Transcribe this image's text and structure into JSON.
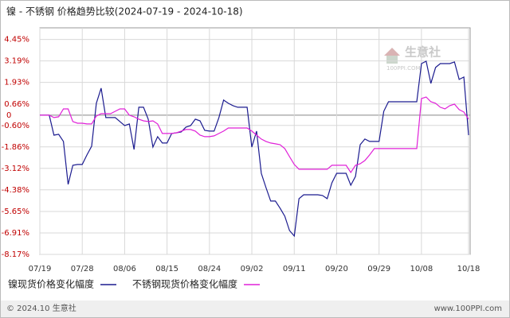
{
  "chart_data": {
    "type": "line",
    "title": "镍 - 不锈钢  价格趋势比较(2024-07-19 - 2024-10-18)",
    "categories": [
      "07/19",
      null,
      null,
      null,
      null,
      null,
      null,
      null,
      null,
      "07/28",
      null,
      null,
      null,
      null,
      null,
      null,
      null,
      null,
      "08/06",
      null,
      null,
      null,
      null,
      null,
      null,
      null,
      null,
      "08/15",
      null,
      null,
      null,
      null,
      null,
      null,
      null,
      null,
      "08/24",
      null,
      null,
      null,
      null,
      null,
      null,
      null,
      null,
      "09/02",
      null,
      null,
      null,
      null,
      null,
      null,
      null,
      null,
      "09/11",
      null,
      null,
      null,
      null,
      null,
      null,
      null,
      null,
      "09/20",
      null,
      null,
      null,
      null,
      null,
      null,
      null,
      null,
      "09/29",
      null,
      null,
      null,
      null,
      null,
      null,
      null,
      null,
      "10/08",
      null,
      null,
      null,
      null,
      null,
      null,
      null,
      null,
      null,
      "10/18"
    ],
    "series": [
      {
        "name": "镍现货价格变化幅度",
        "color": "#1b1b8f",
        "values": [
          0,
          0,
          0,
          -1.17,
          -1.12,
          -1.54,
          -4.06,
          -2.94,
          -2.89,
          -2.89,
          -2.33,
          -1.82,
          0.7,
          1.59,
          -0.14,
          -0.14,
          -0.14,
          -0.37,
          -0.61,
          -0.51,
          -2.01,
          0.47,
          0.47,
          -0.23,
          -1.87,
          -1.26,
          -1.63,
          -1.63,
          -1.07,
          -1.03,
          -0.98,
          -0.7,
          -0.61,
          -0.23,
          -0.33,
          -0.89,
          -0.93,
          -0.93,
          -0.14,
          0.89,
          0.7,
          0.56,
          0.47,
          0.47,
          0.47,
          -1.87,
          -0.93,
          -3.41,
          -4.25,
          -5.04,
          -5.04,
          -5.46,
          -5.93,
          -6.77,
          -7.09,
          -4.9,
          -4.67,
          -4.67,
          -4.67,
          -4.67,
          -4.71,
          -4.9,
          -3.97,
          -3.41,
          -3.41,
          -3.41,
          -4.11,
          -3.59,
          -1.73,
          -1.4,
          -1.54,
          -1.54,
          -1.54,
          0.23,
          0.79,
          0.79,
          0.79,
          0.79,
          0.79,
          0.79,
          0.79,
          3.03,
          3.17,
          1.87,
          2.8,
          3.03,
          3.03,
          3.03,
          3.13,
          2.1,
          2.24,
          -1.17
        ]
      },
      {
        "name": "不锈钢现货价格变化幅度",
        "color": "#e020d8",
        "values": [
          0,
          0,
          0,
          -0.14,
          -0.09,
          0.37,
          0.37,
          -0.37,
          -0.47,
          -0.47,
          -0.51,
          -0.51,
          -0.05,
          0.09,
          0.09,
          0.09,
          0.23,
          0.37,
          0.37,
          0,
          -0.09,
          -0.23,
          -0.33,
          -0.37,
          -0.33,
          -0.51,
          -1.07,
          -1.07,
          -1.07,
          -1.03,
          -0.93,
          -0.84,
          -0.84,
          -0.93,
          -1.17,
          -1.26,
          -1.26,
          -1.21,
          -1.07,
          -0.93,
          -0.75,
          -0.75,
          -0.75,
          -0.75,
          -0.75,
          -0.93,
          -1.17,
          -1.4,
          -1.54,
          -1.63,
          -1.68,
          -1.73,
          -1.96,
          -2.43,
          -2.89,
          -3.17,
          -3.17,
          -3.17,
          -3.17,
          -3.17,
          -3.17,
          -3.17,
          -2.94,
          -2.94,
          -2.94,
          -2.94,
          -3.36,
          -2.94,
          -2.85,
          -2.66,
          -2.33,
          -1.96,
          -1.96,
          -1.96,
          -1.96,
          -1.96,
          -1.96,
          -1.96,
          -1.96,
          -1.96,
          -1.96,
          0.98,
          1.07,
          0.79,
          0.7,
          0.47,
          0.37,
          0.56,
          0.65,
          0.33,
          0.19,
          -0.23
        ]
      }
    ],
    "ylim": [
      -8.17,
      5.13
    ],
    "yticks": [
      {
        "value": 4.45,
        "label": "4.45%"
      },
      {
        "value": 3.19,
        "label": "3.19%"
      },
      {
        "value": 1.93,
        "label": "1.93%"
      },
      {
        "value": 0.66,
        "label": "0.66%"
      },
      0,
      {
        "value": -0.6,
        "label": "-0.60%"
      },
      {
        "value": -1.86,
        "label": "-1.86%"
      },
      {
        "value": -3.12,
        "label": "-3.12%"
      },
      {
        "value": -4.38,
        "label": "-4.38%"
      },
      {
        "value": -5.65,
        "label": "-5.65%"
      },
      {
        "value": -6.91,
        "label": "-6.91%"
      },
      {
        "value": -8.17,
        "label": "-8.17%"
      }
    ],
    "grid": true,
    "legend": "bottom-left"
  },
  "watermark": {
    "name": "生意社",
    "site": "100PPI.COM"
  },
  "footer": {
    "copyright": "© 2024.10 生意社",
    "site": "www.100PPI.com"
  }
}
